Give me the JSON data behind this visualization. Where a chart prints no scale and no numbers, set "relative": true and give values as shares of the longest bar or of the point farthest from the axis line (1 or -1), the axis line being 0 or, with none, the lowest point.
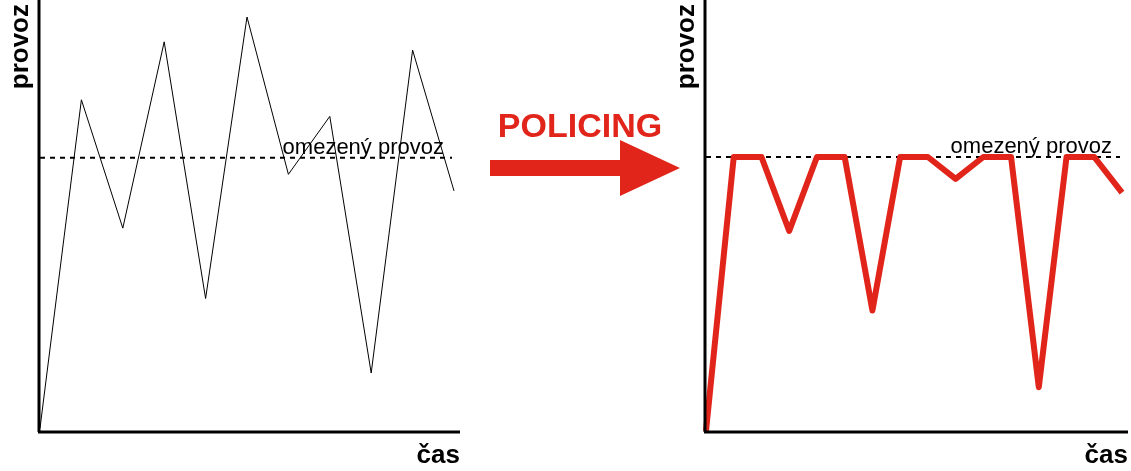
{
  "chart_data": [
    {
      "type": "line",
      "xlabel": "čas",
      "ylabel": "provoz",
      "relative": true,
      "categories": [
        null,
        null,
        null,
        null,
        null,
        null,
        null,
        null,
        null,
        null,
        null
      ],
      "series": [
        {
          "color": "#000000",
          "values": [
            0.007,
            0.8,
            0.49,
            0.94,
            0.32,
            1,
            0.62,
            0.76,
            0.14,
            0.92,
            0.58
          ]
        }
      ],
      "ref_lines": [
        {
          "axis": "y",
          "value": 0.66,
          "label": "omezený provoz",
          "line_style": "dashed",
          "color": "#000000"
        }
      ]
    },
    {
      "type": "other",
      "annotations": [
        "POLICING"
      ]
    },
    {
      "type": "line",
      "xlabel": "čas",
      "ylabel": "provoz",
      "relative": true,
      "categories": [
        null,
        null,
        null,
        null,
        null,
        null,
        null,
        null,
        null,
        null,
        null,
        null,
        null,
        null,
        null,
        null
      ],
      "series": [
        {
          "color": "#e1251b",
          "values": [
            0,
            1,
            1,
            0.73,
            1,
            1,
            0.44,
            1,
            1,
            0.92,
            1,
            1,
            0.16,
            1,
            1,
            0.87
          ]
        }
      ],
      "ref_lines": [
        {
          "axis": "y",
          "value": 1,
          "label": "omezený provoz",
          "line_style": "dashed",
          "color": "#000000"
        }
      ]
    }
  ]
}
